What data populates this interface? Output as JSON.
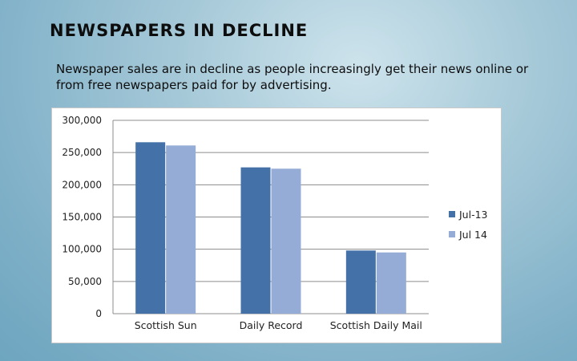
{
  "slide": {
    "title": "NEWSPAPERS IN DECLINE",
    "body": "Newspaper sales are in decline as people increasingly get their news online or from free newspapers paid for by advertising."
  },
  "chart_data": {
    "type": "bar",
    "categories": [
      "Scottish Sun",
      "Daily Record",
      "Scottish Daily Mail"
    ],
    "series": [
      {
        "name": "Jul-13",
        "values": [
          266000,
          227000,
          98000
        ],
        "color": "#4472a8"
      },
      {
        "name": "Jul 14",
        "values": [
          261000,
          225000,
          95000
        ],
        "color": "#95add6"
      }
    ],
    "y_ticks": [
      "0",
      "50,000",
      "100,000",
      "150,000",
      "200,000",
      "250,000",
      "300,000"
    ],
    "ylim": [
      0,
      300000
    ],
    "grid": true,
    "legend_position": "right",
    "xlabel": "",
    "ylabel": ""
  }
}
